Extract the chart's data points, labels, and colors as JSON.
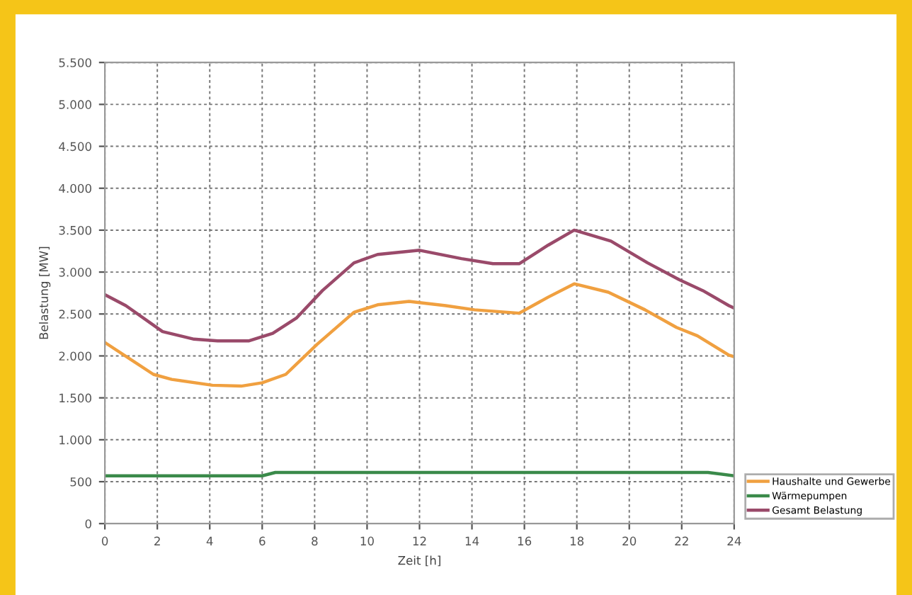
{
  "chart_data": {
    "type": "line",
    "xlabel": "Zeit [h]",
    "ylabel": "Belastung [MW]",
    "xlim": [
      0,
      24
    ],
    "xticks": [
      0,
      2,
      4,
      6,
      8,
      10,
      12,
      14,
      16,
      18,
      20,
      22,
      24
    ],
    "ylim": [
      0,
      5500
    ],
    "yticks": [
      0,
      {
        "value": 500,
        "label": "500"
      },
      {
        "value": 1000,
        "label": "1.000"
      },
      {
        "value": 1500,
        "label": "1.500"
      },
      {
        "value": 2000,
        "label": "2.000"
      },
      {
        "value": 2500,
        "label": "2.500"
      },
      {
        "value": 3000,
        "label": "3.000"
      },
      {
        "value": 3500,
        "label": "3.500"
      },
      {
        "value": 4000,
        "label": "4.000"
      },
      {
        "value": 4500,
        "label": "4.500"
      },
      {
        "value": 5000,
        "label": "5.000"
      },
      {
        "value": 5500,
        "label": "5.500"
      }
    ],
    "grid": true,
    "legend": "bottom right",
    "line_style": "solid",
    "marker": "none",
    "series": [
      {
        "name": "Haushalte und Gewerbe",
        "color": "#f0a040",
        "x": [
          0,
          1.85,
          2.55,
          4.1,
          5.2,
          6,
          6.9,
          8.1,
          9.5,
          10.4,
          11.6,
          13,
          14.1,
          15.8,
          16.9,
          17.9,
          19.2,
          20.6,
          21.8,
          22.6,
          23.8,
          24
        ],
        "values": [
          2160,
          1780,
          1720,
          1650,
          1640,
          1680,
          1780,
          2140,
          2520,
          2610,
          2650,
          2600,
          2550,
          2510,
          2700,
          2860,
          2760,
          2550,
          2340,
          2240,
          2010,
          1990
        ]
      },
      {
        "name": "Wärmepumpen",
        "color": "#3a8a4a",
        "x": [
          0,
          3,
          6,
          6.5,
          12,
          18,
          23,
          24
        ],
        "values": [
          570,
          570,
          570,
          610,
          610,
          610,
          610,
          570
        ]
      },
      {
        "name": "Gesamt Belastung",
        "color": "#9a4a6a",
        "x": [
          0,
          0.8,
          2.2,
          3.4,
          4.3,
          5.5,
          6.4,
          7.3,
          8.3,
          9.5,
          10.4,
          12,
          13.6,
          14.8,
          15.8,
          16.9,
          17.9,
          19.3,
          20.7,
          21.9,
          22.8,
          23.8,
          24
        ],
        "values": [
          2730,
          2600,
          2290,
          2200,
          2180,
          2180,
          2270,
          2450,
          2780,
          3110,
          3210,
          3260,
          3160,
          3100,
          3100,
          3320,
          3500,
          3370,
          3110,
          2910,
          2780,
          2600,
          2570
        ]
      }
    ]
  }
}
